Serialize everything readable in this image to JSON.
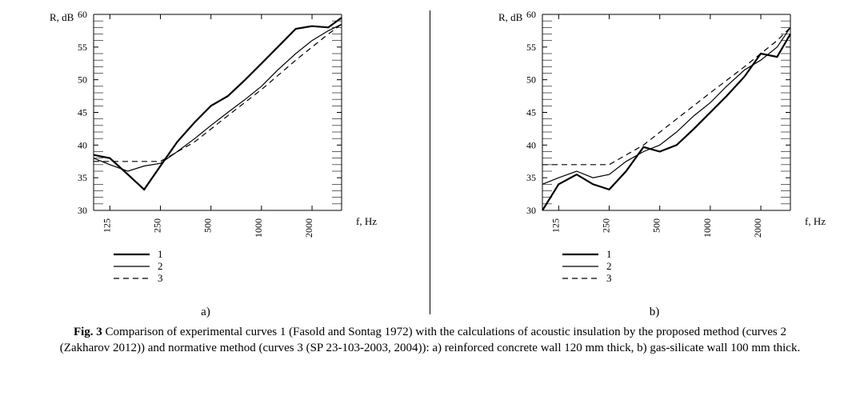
{
  "axes": {
    "y_label": "R, dB",
    "x_label": "f, Hz",
    "y_min": 30,
    "y_max": 60,
    "y_step": 5,
    "x_ticks": [
      125,
      250,
      500,
      1000,
      2000
    ],
    "x_log_min": 100,
    "x_log_max": 3000,
    "label_fontsize": 13,
    "tick_fontsize": 12,
    "axis_color": "#000000",
    "grid_color": "#000000",
    "bg_color": "#ffffff"
  },
  "legend": {
    "items": [
      {
        "label": "1",
        "style": "solid",
        "width": 2.2
      },
      {
        "label": "2",
        "style": "solid",
        "width": 1.2
      },
      {
        "label": "3",
        "style": "dashed",
        "width": 1.2
      }
    ],
    "fontsize": 13
  },
  "chart_a": {
    "sub_label": "a)",
    "series": [
      {
        "name": "curve-1",
        "style": "solid",
        "width": 2.2,
        "color": "#000000",
        "points": [
          [
            100,
            38.5
          ],
          [
            125,
            38.0
          ],
          [
            160,
            35.5
          ],
          [
            200,
            33.2
          ],
          [
            250,
            36.8
          ],
          [
            315,
            40.5
          ],
          [
            400,
            43.5
          ],
          [
            500,
            46.0
          ],
          [
            630,
            47.5
          ],
          [
            800,
            50.0
          ],
          [
            1000,
            52.5
          ],
          [
            1250,
            55.0
          ],
          [
            1600,
            57.8
          ],
          [
            2000,
            58.2
          ],
          [
            2500,
            58.0
          ],
          [
            3000,
            59.5
          ]
        ]
      },
      {
        "name": "curve-2",
        "style": "solid",
        "width": 1.2,
        "color": "#000000",
        "points": [
          [
            100,
            38.0
          ],
          [
            125,
            37.0
          ],
          [
            160,
            36.0
          ],
          [
            200,
            36.8
          ],
          [
            250,
            37.2
          ],
          [
            315,
            39.0
          ],
          [
            400,
            41.0
          ],
          [
            500,
            43.0
          ],
          [
            630,
            45.0
          ],
          [
            800,
            47.0
          ],
          [
            1000,
            49.0
          ],
          [
            1250,
            51.5
          ],
          [
            1600,
            54.0
          ],
          [
            2000,
            56.0
          ],
          [
            2500,
            57.5
          ],
          [
            3000,
            58.5
          ]
        ]
      },
      {
        "name": "curve-3",
        "style": "dashed",
        "width": 1.2,
        "color": "#000000",
        "points": [
          [
            100,
            37.5
          ],
          [
            200,
            37.5
          ],
          [
            250,
            37.5
          ],
          [
            400,
            40.5
          ],
          [
            630,
            44.5
          ],
          [
            1000,
            48.5
          ],
          [
            1600,
            53.0
          ],
          [
            2500,
            57.0
          ],
          [
            3000,
            58.5
          ]
        ]
      }
    ]
  },
  "chart_b": {
    "sub_label": "b)",
    "series": [
      {
        "name": "curve-1",
        "style": "solid",
        "width": 2.2,
        "color": "#000000",
        "points": [
          [
            100,
            30.0
          ],
          [
            125,
            34.0
          ],
          [
            160,
            35.5
          ],
          [
            200,
            34.0
          ],
          [
            250,
            33.2
          ],
          [
            315,
            36.0
          ],
          [
            400,
            39.7
          ],
          [
            500,
            39.0
          ],
          [
            630,
            40.0
          ],
          [
            800,
            42.5
          ],
          [
            1000,
            45.0
          ],
          [
            1250,
            47.5
          ],
          [
            1600,
            50.5
          ],
          [
            2000,
            54.0
          ],
          [
            2500,
            53.5
          ],
          [
            3000,
            57.0
          ]
        ]
      },
      {
        "name": "curve-2",
        "style": "solid",
        "width": 1.2,
        "color": "#000000",
        "points": [
          [
            100,
            34.0
          ],
          [
            125,
            35.0
          ],
          [
            160,
            36.0
          ],
          [
            200,
            35.0
          ],
          [
            250,
            35.5
          ],
          [
            315,
            37.5
          ],
          [
            400,
            39.0
          ],
          [
            500,
            40.0
          ],
          [
            630,
            42.0
          ],
          [
            800,
            44.5
          ],
          [
            1000,
            46.5
          ],
          [
            1250,
            49.0
          ],
          [
            1600,
            51.5
          ],
          [
            2000,
            53.0
          ],
          [
            2500,
            55.0
          ],
          [
            3000,
            58.0
          ]
        ]
      },
      {
        "name": "curve-3",
        "style": "dashed",
        "width": 1.2,
        "color": "#000000",
        "points": [
          [
            100,
            37.0
          ],
          [
            250,
            37.0
          ],
          [
            400,
            40.0
          ],
          [
            630,
            44.0
          ],
          [
            1000,
            48.0
          ],
          [
            1600,
            52.0
          ],
          [
            2500,
            56.0
          ],
          [
            3000,
            58.0
          ]
        ]
      }
    ]
  },
  "caption_html": "<b>Fig. 3</b> Comparison of experimental curves 1 (Fasold and Sontag 1972) with the calculations of acoustic insulation by the proposed method (curves 2 (Zakharov 2012)) and normative method (curves 3 (SP 23-103-2003, 2004)): a) reinforced concrete wall 120 mm thick, b) gas-silicate wall 100 mm thick."
}
